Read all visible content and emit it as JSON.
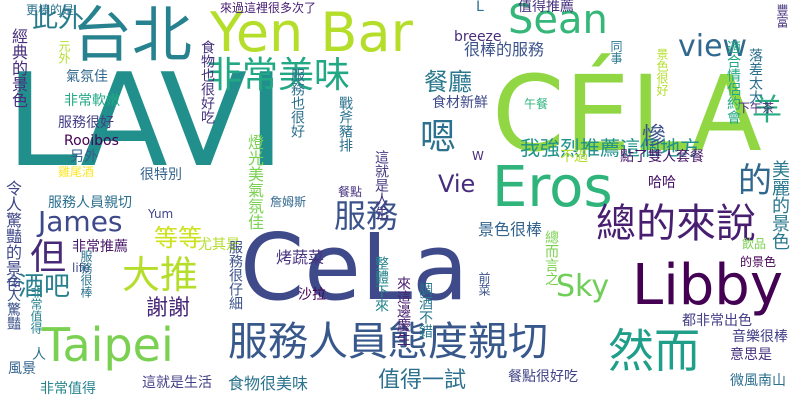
{
  "words": [
    {
      "text": "LAVI",
      "color": "#21908d"
    },
    {
      "text": "CÉLA",
      "color": "#90d743"
    },
    {
      "text": "CeLa",
      "color": "#3e4a89"
    },
    {
      "text": "Yen Bar",
      "color": "#b5de2b"
    },
    {
      "text": "Eros",
      "color": "#2fb47c"
    },
    {
      "text": "Libby",
      "color": "#440154"
    },
    {
      "text": "台北",
      "color": "#26828e"
    },
    {
      "text": "Taipei",
      "color": "#7ad151"
    },
    {
      "text": "然而",
      "color": "#1f9e89"
    },
    {
      "text": "服務人員態度親切",
      "color": "#38588c"
    },
    {
      "text": "總的來說",
      "color": "#481f70"
    },
    {
      "text": "Sean",
      "color": "#35b779"
    },
    {
      "text": "非常美味",
      "color": "#22a884"
    },
    {
      "text": "大推",
      "color": "#b5de2b"
    },
    {
      "text": "服務",
      "color": "#3b528b"
    },
    {
      "text": "的",
      "color": "#31688e"
    },
    {
      "text": "嗯",
      "color": "#2c728e"
    },
    {
      "text": "James",
      "color": "#3e4989"
    },
    {
      "text": "但",
      "color": "#482878"
    },
    {
      "text": "Sky",
      "color": "#6ece58"
    },
    {
      "text": "view",
      "color": "#31688e"
    },
    {
      "text": "Vie",
      "color": "#472d7b"
    },
    {
      "text": "羊",
      "color": "#27ad81"
    },
    {
      "text": "此外",
      "color": "#287c8e"
    },
    {
      "text": "酒吧",
      "color": "#27808e"
    },
    {
      "text": "餐廳",
      "color": "#2a788e"
    },
    {
      "text": "等等",
      "color": "#cde11d"
    },
    {
      "text": "謝謝",
      "color": "#482878"
    },
    {
      "text": "美麗的景色",
      "color": "#2a788e"
    },
    {
      "text": "我強烈推薦這個地方",
      "color": "#20928c"
    },
    {
      "text": "很棒的服務",
      "color": "#3b528b"
    },
    {
      "text": "值得推薦",
      "color": "#46327e"
    },
    {
      "text": "值得一試",
      "color": "#2d708e"
    },
    {
      "text": "食物很美味",
      "color": "#2c738e"
    },
    {
      "text": "餐點很好吃",
      "color": "#414487"
    },
    {
      "text": "景色很棒",
      "color": "#33638d"
    },
    {
      "text": "烤蔬菜",
      "color": "#46327e"
    },
    {
      "text": "慘",
      "color": "#3b528b"
    },
    {
      "text": "經典的景色",
      "color": "#472d7b"
    },
    {
      "text": "令人驚豔的景色",
      "color": "#3f4788"
    },
    {
      "text": "服務人員親切",
      "color": "#2d708e"
    },
    {
      "text": "服務很好",
      "color": "#433e85"
    },
    {
      "text": "非常軟嫩",
      "color": "#22a884"
    },
    {
      "text": "氣氛佳",
      "color": "#31688e"
    },
    {
      "text": "非常推薦",
      "color": "#481769"
    },
    {
      "text": "Rooibos",
      "color": "#440154"
    },
    {
      "text": "雞尾酒",
      "color": "#fde725"
    },
    {
      "text": "很特別",
      "color": "#33638d"
    },
    {
      "text": "Yum",
      "color": "#404688"
    },
    {
      "text": "life",
      "color": "#3e4a89"
    },
    {
      "text": "另外",
      "color": "#355f8d"
    },
    {
      "text": "令人驚豔",
      "color": "#3b528b"
    },
    {
      "text": "非常值得",
      "color": "#25838e"
    },
    {
      "text": "這就是生活",
      "color": "#424086"
    },
    {
      "text": "食物也很好吃",
      "color": "#46337f"
    },
    {
      "text": "服務也很好",
      "color": "#2e6f8e"
    },
    {
      "text": "燈光美氣氛佳",
      "color": "#7ad151"
    },
    {
      "text": "尤其是",
      "color": "#b5de2b"
    },
    {
      "text": "服務很仔細",
      "color": "#3b528b"
    },
    {
      "text": "沙拉",
      "color": "#440154"
    },
    {
      "text": "詹姆斯",
      "color": "#31688e"
    },
    {
      "text": "服務很棒",
      "color": "#2c728e"
    },
    {
      "text": "breeze",
      "color": "#472d7b"
    },
    {
      "text": "食材新鮮",
      "color": "#3e4989"
    },
    {
      "text": "餐點",
      "color": "#46327e"
    },
    {
      "text": "這就是人生",
      "color": "#453781"
    },
    {
      "text": "戰斧豬排",
      "color": "#2c728e"
    },
    {
      "text": "午餐",
      "color": "#2fb47c"
    },
    {
      "text": "不過",
      "color": "#b5de2b"
    },
    {
      "text": "點了雙人套餐",
      "color": "#48186a"
    },
    {
      "text": "哈哈",
      "color": "#481467"
    },
    {
      "text": "落差太大",
      "color": "#2d708e"
    },
    {
      "text": "適合情侶約會",
      "color": "#22a884"
    },
    {
      "text": "景色很好",
      "color": "#b5de2b"
    },
    {
      "text": "來這邊慶生",
      "color": "#481f70"
    },
    {
      "text": "調酒不錯",
      "color": "#2a788e"
    },
    {
      "text": "意思是",
      "color": "#46327e"
    },
    {
      "text": "飲品",
      "color": "#7ad151"
    },
    {
      "text": "都非常出色",
      "color": "#433e85"
    },
    {
      "text": "音樂很棒",
      "color": "#424086"
    },
    {
      "text": "微風南山",
      "color": "#2d708e"
    },
    {
      "text": "的景色",
      "color": "#440154"
    },
    {
      "text": "前菜",
      "color": "#3b528b"
    },
    {
      "text": "總而言之",
      "color": "#7ad151"
    },
    {
      "text": "整體下來",
      "color": "#25858e"
    },
    {
      "text": "人",
      "color": "#2c728e"
    },
    {
      "text": "風景",
      "color": "#33638d"
    },
    {
      "text": "非常值得",
      "color": "#27808e"
    },
    {
      "text": "W",
      "color": "#472d7b"
    },
    {
      "text": "L",
      "color": "#2c728e"
    },
    {
      "text": "更棒的是",
      "color": "#2c728e"
    },
    {
      "text": "元外",
      "color": "#b5de2b"
    },
    {
      "text": "來過這裡很多次了",
      "color": "#482173"
    },
    {
      "text": "同事",
      "color": "#2a788e"
    },
    {
      "text": "下午茶",
      "color": "#482575"
    },
    {
      "text": "豐富",
      "color": "#46327e"
    }
  ]
}
